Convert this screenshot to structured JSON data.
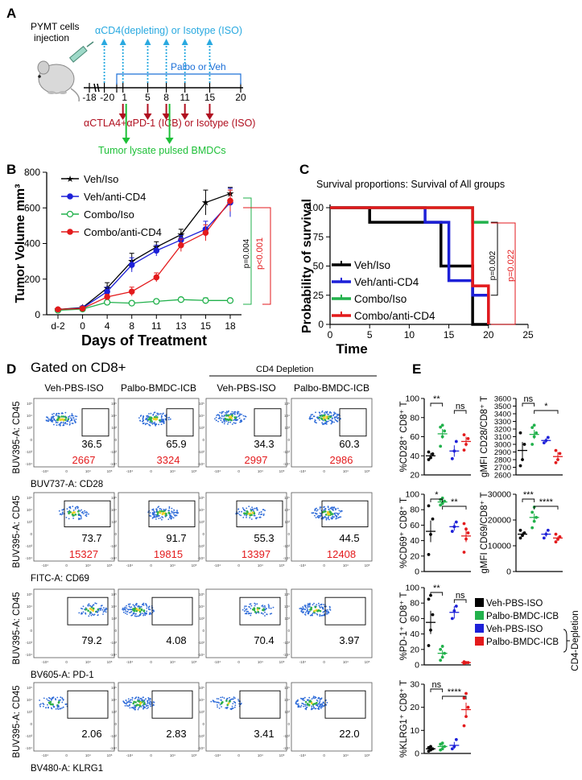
{
  "panels": {
    "A": "A",
    "B": "B",
    "C": "C",
    "D": "D",
    "E": "E"
  },
  "colors": {
    "black": "#000000",
    "blue": "#1d20d8",
    "green": "#22b14c",
    "red": "#e31a1c",
    "cyan": "#29a9e0",
    "dark_red": "#b01020",
    "bright_green": "#1ec038"
  },
  "schematic": {
    "inject_label_1": "PYMT cells",
    "inject_label_2": "injection",
    "depletion_label": "αCD4(depleting) or Isotype (ISO)",
    "palbo_label": "Palbo or Veh",
    "icb_label": "αCTLA4+αPD-1 (ICB) or Isotype (ISO)",
    "bmdc_label": "Tumor lysate pulsed BMDCs",
    "timeline_ticks": [
      {
        "label": "-18",
        "day": -18
      },
      {
        "label": "-2",
        "day": -2
      },
      {
        "label": "0",
        "day": 0
      },
      {
        "label": "1",
        "day": 1
      },
      {
        "label": "5",
        "day": 5
      },
      {
        "label": "8",
        "day": 8
      },
      {
        "label": "11",
        "day": 11
      },
      {
        "label": "15",
        "day": 15
      },
      {
        "label": "20",
        "day": 20
      }
    ],
    "cd4_days": [
      -2,
      1,
      5,
      8,
      11,
      15
    ],
    "icb_days": [
      1,
      5,
      8,
      11,
      15
    ],
    "bmdc_days": [
      1,
      8
    ]
  },
  "chart_data": [
    {
      "id": "B",
      "type": "line",
      "xlabel": "Days of Treatment",
      "ylabel": "Tumor Volume mm³",
      "categories": [
        "d-2",
        "0",
        "4",
        "8",
        "11",
        "13",
        "15",
        "18"
      ],
      "ylim": [
        0,
        800
      ],
      "yticks": [
        0,
        200,
        400,
        600,
        800
      ],
      "series": [
        {
          "name": "Veh/Iso",
          "color": "#000000",
          "marker": "star",
          "values": [
            30,
            40,
            150,
            300,
            380,
            450,
            630,
            680
          ],
          "err": [
            8,
            8,
            30,
            45,
            30,
            30,
            70,
            35
          ]
        },
        {
          "name": "Veh/anti-CD4",
          "color": "#1d20d8",
          "marker": "circle",
          "values": [
            28,
            38,
            130,
            280,
            360,
            420,
            480,
            630
          ],
          "err": [
            8,
            8,
            25,
            40,
            30,
            25,
            45,
            80
          ]
        },
        {
          "name": "Combo/Iso",
          "color": "#22b14c",
          "marker": "open-circle",
          "values": [
            25,
            32,
            70,
            65,
            75,
            85,
            80,
            80
          ],
          "err": [
            5,
            5,
            12,
            12,
            12,
            12,
            15,
            12
          ]
        },
        {
          "name": "Combo/anti-CD4",
          "color": "#e31a1c",
          "marker": "circle",
          "values": [
            30,
            35,
            100,
            130,
            210,
            390,
            460,
            640
          ],
          "err": [
            8,
            8,
            15,
            25,
            25,
            35,
            45,
            60
          ]
        }
      ],
      "annotations": [
        {
          "text": "p=0.004",
          "color": "#000000"
        },
        {
          "text": "p<0.001",
          "color": "#e31a1c"
        }
      ]
    },
    {
      "id": "C",
      "type": "line",
      "title": "Survival proportions: Survival of All groups",
      "xlabel": "Time",
      "ylabel": "Probability of survival",
      "xlim": [
        0,
        25
      ],
      "ylim": [
        0,
        100
      ],
      "xticks": [
        0,
        5,
        10,
        15,
        20,
        25
      ],
      "yticks": [
        0,
        25,
        50,
        75,
        100
      ],
      "series": [
        {
          "name": "Veh/Iso",
          "color": "#000000",
          "steps": [
            [
              0,
              100
            ],
            [
              5,
              100
            ],
            [
              5,
              87.5
            ],
            [
              14,
              87.5
            ],
            [
              14,
              50
            ],
            [
              18,
              50
            ],
            [
              18,
              0
            ],
            [
              20,
              0
            ]
          ]
        },
        {
          "name": "Veh/anti-CD4",
          "color": "#1d20d8",
          "steps": [
            [
              0,
              100
            ],
            [
              12,
              100
            ],
            [
              12,
              87.5
            ],
            [
              15,
              87.5
            ],
            [
              15,
              37.5
            ],
            [
              18,
              37.5
            ],
            [
              18,
              25
            ],
            [
              20,
              25
            ],
            [
              20,
              0
            ]
          ]
        },
        {
          "name": "Combo/Iso",
          "color": "#22b14c",
          "steps": [
            [
              0,
              100
            ],
            [
              18,
              100
            ],
            [
              18,
              87.5
            ],
            [
              20,
              87.5
            ]
          ]
        },
        {
          "name": "Combo/anti-CD4",
          "color": "#e31a1c",
          "steps": [
            [
              0,
              100
            ],
            [
              18,
              100
            ],
            [
              18,
              33
            ],
            [
              20,
              33
            ],
            [
              20,
              0
            ]
          ]
        }
      ],
      "annotations": [
        {
          "text": "p=0.002",
          "color": "#000000"
        },
        {
          "text": "p=0.022",
          "color": "#e31a1c"
        }
      ]
    },
    {
      "id": "E1",
      "type": "scatter",
      "ylabel": "%CD28⁺ CD8⁺ T",
      "ylim": [
        20,
        100
      ],
      "yticks": [
        "20",
        "40",
        "60",
        "80",
        "100"
      ],
      "groups": [
        {
          "color": "#000000",
          "mean": 40,
          "sem": 3,
          "points": [
            36,
            38,
            42,
            44
          ]
        },
        {
          "color": "#22b14c",
          "mean": 63,
          "sem": 5,
          "points": [
            50,
            60,
            66,
            70,
            72
          ]
        },
        {
          "color": "#1d20d8",
          "mean": 45,
          "sem": 6,
          "points": [
            37,
            45,
            55
          ]
        },
        {
          "color": "#e31a1c",
          "mean": 55,
          "sem": 5,
          "points": [
            46,
            52,
            58,
            62
          ]
        }
      ],
      "sig": [
        {
          "text": "**",
          "from": 0,
          "to": 1
        },
        {
          "text": "ns",
          "from": 2,
          "to": 3
        }
      ]
    },
    {
      "id": "E2",
      "type": "scatter",
      "ylabel": "gMFI CD28/CD8⁺ T",
      "ylim": [
        2600,
        3600
      ],
      "yticks": [
        "2600",
        "2700",
        "2800",
        "2900",
        "3000",
        "3100",
        "3200",
        "3300",
        "3400",
        "3500",
        "3600"
      ],
      "groups": [
        {
          "color": "#000000",
          "mean": 2920,
          "sem": 110,
          "points": [
            2720,
            2800,
            3000,
            3150
          ]
        },
        {
          "color": "#22b14c",
          "mean": 3130,
          "sem": 60,
          "points": [
            3000,
            3100,
            3150,
            3220,
            3250
          ]
        },
        {
          "color": "#1d20d8",
          "mean": 3050,
          "sem": 30,
          "points": [
            3020,
            3050,
            3090
          ]
        },
        {
          "color": "#e31a1c",
          "mean": 2840,
          "sem": 60,
          "points": [
            2760,
            2800,
            2880,
            2920
          ]
        }
      ],
      "sig": [
        {
          "text": "ns",
          "from": 0,
          "to": 1
        },
        {
          "text": "*",
          "from": 1,
          "to": 3
        }
      ]
    },
    {
      "id": "E3",
      "type": "scatter",
      "ylabel": "%CD69⁺ CD8⁺ T",
      "ylim": [
        0,
        100
      ],
      "yticks": [
        "0",
        "20",
        "40",
        "60",
        "80",
        "100"
      ],
      "groups": [
        {
          "color": "#000000",
          "mean": 52,
          "sem": 14,
          "points": [
            22,
            48,
            68,
            85
          ]
        },
        {
          "color": "#22b14c",
          "mean": 90,
          "sem": 2,
          "points": [
            86,
            88,
            91,
            93,
            95
          ]
        },
        {
          "color": "#1d20d8",
          "mean": 58,
          "sem": 5,
          "points": [
            52,
            58,
            64
          ]
        },
        {
          "color": "#e31a1c",
          "mean": 46,
          "sem": 8,
          "points": [
            25,
            42,
            50,
            62,
            55
          ]
        }
      ],
      "sig": [
        {
          "text": "*",
          "from": 0,
          "to": 1
        },
        {
          "text": "**",
          "from": 1,
          "to": 3
        }
      ]
    },
    {
      "id": "E4",
      "type": "scatter",
      "ylabel": "gMFI CD69/CD8⁺ T",
      "ylim": [
        0,
        30000
      ],
      "yticks": [
        "0",
        "10000",
        "20000",
        "30000"
      ],
      "groups": [
        {
          "color": "#000000",
          "mean": 14500,
          "sem": 700,
          "points": [
            13000,
            14000,
            15000,
            16000
          ]
        },
        {
          "color": "#22b14c",
          "mean": 21000,
          "sem": 1500,
          "points": [
            17000,
            19500,
            21000,
            23000,
            25000
          ]
        },
        {
          "color": "#1d20d8",
          "mean": 14500,
          "sem": 1000,
          "points": [
            13000,
            14500,
            16000
          ]
        },
        {
          "color": "#e31a1c",
          "mean": 13000,
          "sem": 600,
          "points": [
            11500,
            12500,
            13500,
            14500
          ]
        }
      ],
      "sig": [
        {
          "text": "***",
          "from": 0,
          "to": 1
        },
        {
          "text": "****",
          "from": 1,
          "to": 3
        }
      ]
    },
    {
      "id": "E5",
      "type": "scatter",
      "ylabel": "%PD-1⁺ CD8⁺ T",
      "ylim": [
        0,
        100
      ],
      "yticks": [
        "0",
        "20",
        "40",
        "60",
        "80",
        "100"
      ],
      "groups": [
        {
          "color": "#000000",
          "mean": 55,
          "sem": 15,
          "points": [
            25,
            45,
            65,
            85,
            90
          ]
        },
        {
          "color": "#22b14c",
          "mean": 15,
          "sem": 4,
          "points": [
            6,
            10,
            15,
            20,
            24
          ]
        },
        {
          "color": "#1d20d8",
          "mean": 68,
          "sem": 8,
          "points": [
            60,
            70,
            76
          ]
        },
        {
          "color": "#e31a1c",
          "mean": 3,
          "sem": 1,
          "points": [
            2,
            3,
            3,
            4
          ]
        }
      ],
      "sig": [
        {
          "text": "**",
          "from": 0,
          "to": 1
        },
        {
          "text": "ns",
          "from": 2,
          "to": 3
        }
      ]
    },
    {
      "id": "E6",
      "type": "scatter",
      "ylabel": "%KLRG1⁺ CD8⁺ T",
      "ylim": [
        0,
        30
      ],
      "yticks": [
        "0",
        "10",
        "20",
        "30"
      ],
      "groups": [
        {
          "color": "#000000",
          "mean": 2,
          "sem": 0.5,
          "points": [
            1,
            1.5,
            2,
            2.5,
            3
          ]
        },
        {
          "color": "#22b14c",
          "mean": 3,
          "sem": 0.8,
          "points": [
            1.5,
            2,
            3,
            4,
            4.5
          ]
        },
        {
          "color": "#1d20d8",
          "mean": 3.5,
          "sem": 1.5,
          "points": [
            2,
            3,
            6
          ]
        },
        {
          "color": "#e31a1c",
          "mean": 19,
          "sem": 3,
          "points": [
            12,
            16,
            20,
            24,
            26
          ]
        }
      ],
      "sig": [
        {
          "text": "ns",
          "from": 0,
          "to": 1
        },
        {
          "text": "****",
          "from": 1,
          "to": 3
        }
      ]
    }
  ],
  "flow": {
    "gated_label": "Gated on CD8+",
    "depletion_header": "CD4 Depletion",
    "columns": [
      "Veh-PBS-ISO",
      "Palbo-BMDC-ICB",
      "Veh-PBS-ISO",
      "Palbo-BMDC-ICB"
    ],
    "y_axis": "BUV395-A: CD45",
    "rows": [
      {
        "x_axis": "BUV737-A: CD28",
        "pct": [
          "36.5",
          "65.9",
          "34.3",
          "60.3"
        ],
        "mfi": [
          "2667",
          "3324",
          "2997",
          "2986"
        ]
      },
      {
        "x_axis": "FITC-A: CD69",
        "pct": [
          "73.7",
          "91.7",
          "55.3",
          "44.5"
        ],
        "mfi": [
          "15327",
          "19815",
          "13397",
          "12408"
        ]
      },
      {
        "x_axis": "BV605-A: PD-1",
        "pct": [
          "79.2",
          "4.08",
          "70.4",
          "3.97"
        ],
        "mfi": []
      },
      {
        "x_axis": "BV480-A: KLRG1",
        "pct": [
          "2.06",
          "2.83",
          "3.41",
          "22.0"
        ],
        "mfi": []
      }
    ],
    "tick_y": [
      "10⁵",
      "10⁴",
      "10³",
      "0",
      "-10³",
      "-10⁴"
    ],
    "tick_x": [
      "-10⁴",
      "0",
      "10⁴",
      "10⁵"
    ]
  },
  "legend_e": {
    "items": [
      {
        "label": "Veh-PBS-ISO",
        "color": "#000000"
      },
      {
        "label": "Palbo-BMDC-ICB",
        "color": "#22b14c"
      },
      {
        "label": "Veh-PBS-ISO",
        "color": "#1d20d8"
      },
      {
        "label": "Palbo-BMDC-ICB",
        "color": "#e31a1c"
      }
    ],
    "bracket_label": "CD4-Depletion"
  }
}
